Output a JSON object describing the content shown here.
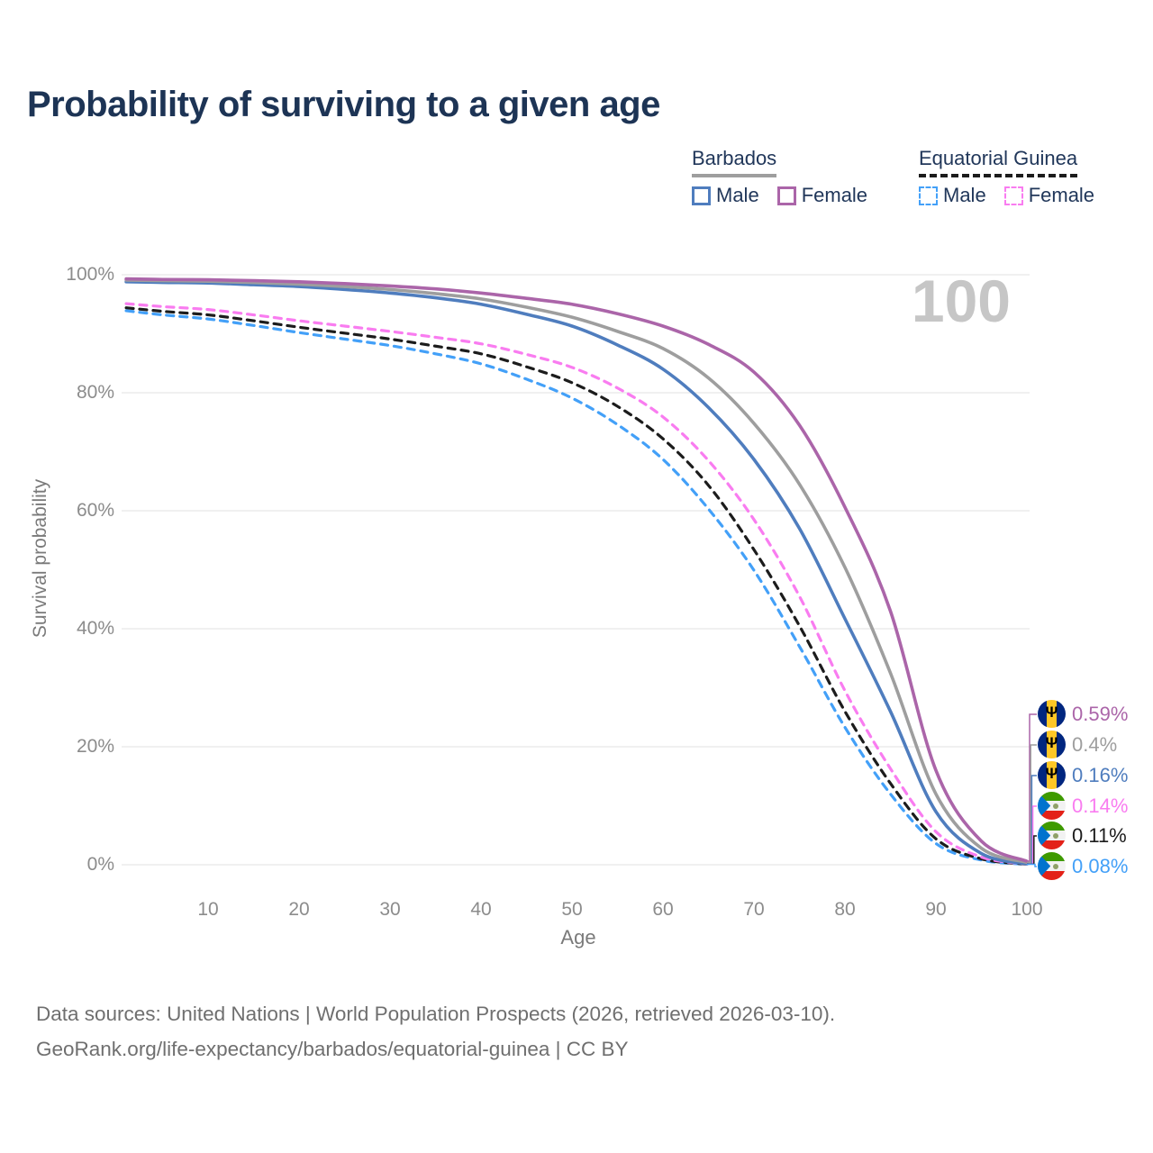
{
  "title": "Probability of surviving to a given age",
  "watermark": "100",
  "legend": {
    "groups": [
      {
        "label": "Barbados",
        "style": "solid",
        "underline_color": "#9e9e9e",
        "items": [
          {
            "label": "Male",
            "color": "#4f7dbe",
            "dashed": false
          },
          {
            "label": "Female",
            "color": "#ab65a9",
            "dashed": false
          }
        ]
      },
      {
        "label": "Equatorial Guinea",
        "style": "dashed",
        "underline_color": "#1c1c1c",
        "items": [
          {
            "label": "Male",
            "color": "#43a0f8",
            "dashed": true
          },
          {
            "label": "Female",
            "color": "#f97cf0",
            "dashed": true
          }
        ]
      }
    ]
  },
  "axes": {
    "y_title": "Survival probability",
    "x_title": "Age",
    "y_ticks": [
      "100%",
      "80%",
      "60%",
      "40%",
      "20%",
      "0%"
    ],
    "x_ticks": [
      "10",
      "20",
      "30",
      "40",
      "50",
      "60",
      "70",
      "80",
      "90",
      "100"
    ]
  },
  "chart_data": {
    "type": "line",
    "title": "Probability of surviving to a given age",
    "xlabel": "Age",
    "ylabel": "Survival probability",
    "xlim": [
      1,
      100
    ],
    "ylim": [
      0,
      100
    ],
    "grid": "horizontal",
    "legend_position": "top-right",
    "y_tick_values": [
      100,
      80,
      60,
      40,
      20,
      0
    ],
    "x_tick_values": [
      10,
      20,
      30,
      40,
      50,
      60,
      70,
      80,
      90,
      100
    ],
    "ages": [
      1,
      5,
      10,
      15,
      20,
      25,
      30,
      35,
      40,
      45,
      50,
      55,
      60,
      65,
      70,
      75,
      80,
      85,
      90,
      95,
      100
    ],
    "series": [
      {
        "name": "Barbados Female",
        "country": "Barbados",
        "sex": "Female",
        "color": "#ab65a9",
        "dashed": false,
        "end_label": "0.59%",
        "values": [
          99.3,
          99.2,
          99.15,
          99.0,
          98.8,
          98.5,
          98.1,
          97.6,
          96.9,
          96.0,
          95.0,
          93.4,
          91.3,
          88.2,
          83.5,
          74.5,
          60.6,
          43.0,
          16.0,
          4.0,
          0.59
        ]
      },
      {
        "name": "Barbados",
        "country": "Barbados",
        "sex": "Both",
        "color": "#9e9e9e",
        "dashed": false,
        "end_label": "0.4%",
        "values": [
          99.1,
          99.0,
          98.9,
          98.7,
          98.4,
          98.0,
          97.5,
          96.8,
          95.9,
          94.5,
          92.8,
          90.4,
          87.5,
          82.5,
          74.8,
          64.5,
          50.4,
          32.5,
          12.0,
          2.8,
          0.4
        ]
      },
      {
        "name": "Barbados Male",
        "country": "Barbados",
        "sex": "Male",
        "color": "#4f7dbe",
        "dashed": false,
        "end_label": "0.16%",
        "values": [
          98.8,
          98.7,
          98.6,
          98.3,
          98.0,
          97.5,
          96.9,
          96.1,
          95.0,
          93.3,
          91.3,
          88.1,
          84.0,
          77.5,
          68.7,
          57.0,
          41.7,
          26.0,
          9.0,
          1.9,
          0.16
        ]
      },
      {
        "name": "Equatorial Guinea Female",
        "country": "Equatorial Guinea",
        "sex": "Female",
        "color": "#f97cf0",
        "dashed": true,
        "end_label": "0.14%",
        "values": [
          95.1,
          94.6,
          94.1,
          93.2,
          92.2,
          91.3,
          90.4,
          89.4,
          88.3,
          86.5,
          84.3,
          80.8,
          75.9,
          68.5,
          58.5,
          45.5,
          29.5,
          16.3,
          5.6,
          1.3,
          0.14
        ]
      },
      {
        "name": "Equatorial Guinea",
        "country": "Equatorial Guinea",
        "sex": "Both",
        "color": "#1c1c1c",
        "dashed": true,
        "end_label": "0.11%",
        "values": [
          94.4,
          93.8,
          93.2,
          92.2,
          91.1,
          90.1,
          89.1,
          87.9,
          86.6,
          84.4,
          81.7,
          77.7,
          72.2,
          64.3,
          53.4,
          40.5,
          26.0,
          13.8,
          4.4,
          1.0,
          0.11
        ]
      },
      {
        "name": "Equatorial Guinea Male",
        "country": "Equatorial Guinea",
        "sex": "Male",
        "color": "#43a0f8",
        "dashed": true,
        "end_label": "0.08%",
        "values": [
          93.9,
          93.2,
          92.5,
          91.4,
          90.2,
          89.1,
          88.0,
          86.6,
          84.9,
          82.3,
          79.1,
          74.6,
          68.7,
          60.3,
          49.9,
          37.0,
          23.3,
          12.0,
          3.6,
          0.8,
          0.08
        ]
      }
    ]
  },
  "annotations": [
    {
      "label": "0.59%",
      "color": "#ab65a9",
      "flag": "barbados"
    },
    {
      "label": "0.4%",
      "color": "#9e9e9e",
      "flag": "barbados"
    },
    {
      "label": "0.16%",
      "color": "#4f7dbe",
      "flag": "barbados"
    },
    {
      "label": "0.14%",
      "color": "#f97cf0",
      "flag": "equatorial-guinea"
    },
    {
      "label": "0.11%",
      "color": "#1c1c1c",
      "flag": "equatorial-guinea"
    },
    {
      "label": "0.08%",
      "color": "#43a0f8",
      "flag": "equatorial-guinea"
    }
  ],
  "footer": {
    "line1": "Data sources: United Nations | World Population Prospects (2026, retrieved 2026-03-10).",
    "line2": "GeoRank.org/life-expectancy/barbados/equatorial-guinea | CC BY"
  }
}
